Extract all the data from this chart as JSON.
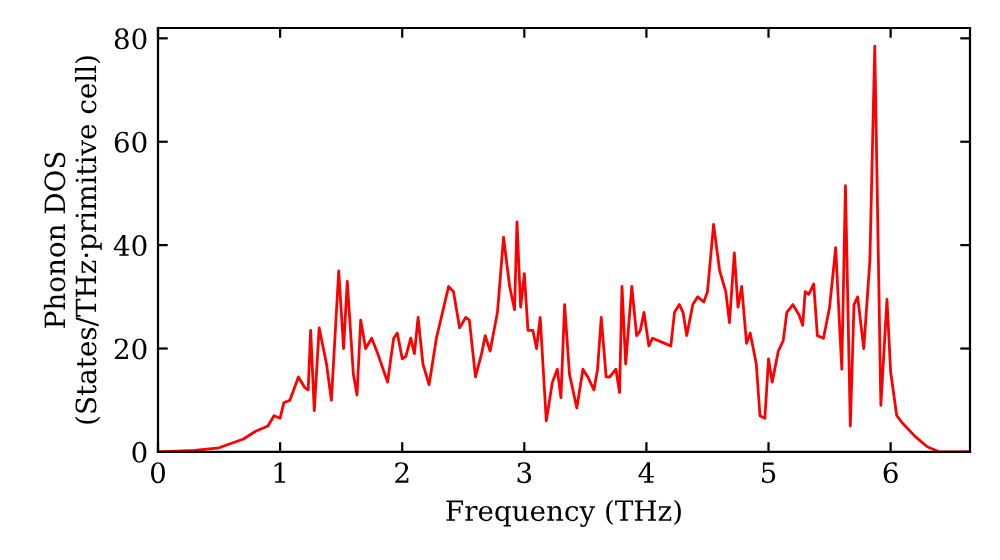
{
  "chart_data": {
    "type": "line",
    "xlabel": "Frequency (THz)",
    "ylabel": "Phonon DOS\n(States/THz·primitive cell)",
    "xlim": [
      0,
      6.65
    ],
    "ylim": [
      0,
      82
    ],
    "xticks": [
      0,
      1,
      2,
      3,
      4,
      5,
      6
    ],
    "yticks": [
      0,
      20,
      40,
      60,
      80
    ],
    "grid": false,
    "legend": false,
    "series": [
      {
        "color": "#ff0000",
        "x": [
          0,
          0.3,
          0.5,
          0.7,
          0.8,
          0.9,
          0.95,
          1.0,
          1.03,
          1.08,
          1.15,
          1.2,
          1.23,
          1.25,
          1.28,
          1.32,
          1.38,
          1.42,
          1.48,
          1.52,
          1.55,
          1.6,
          1.63,
          1.66,
          1.7,
          1.75,
          1.8,
          1.88,
          1.93,
          1.96,
          2.0,
          2.03,
          2.07,
          2.1,
          2.13,
          2.17,
          2.22,
          2.28,
          2.33,
          2.38,
          2.42,
          2.47,
          2.52,
          2.55,
          2.6,
          2.65,
          2.68,
          2.72,
          2.78,
          2.83,
          2.88,
          2.92,
          2.94,
          2.97,
          3.0,
          3.03,
          3.07,
          3.1,
          3.13,
          3.18,
          3.23,
          3.27,
          3.3,
          3.33,
          3.37,
          3.43,
          3.48,
          3.52,
          3.57,
          3.6,
          3.63,
          3.67,
          3.7,
          3.75,
          3.78,
          3.8,
          3.83,
          3.88,
          3.92,
          3.95,
          3.98,
          4.02,
          4.05,
          4.1,
          4.15,
          4.2,
          4.23,
          4.27,
          4.3,
          4.33,
          4.38,
          4.42,
          4.47,
          4.5,
          4.55,
          4.6,
          4.65,
          4.68,
          4.72,
          4.75,
          4.78,
          4.82,
          4.85,
          4.9,
          4.93,
          4.97,
          5.0,
          5.03,
          5.08,
          5.12,
          5.15,
          5.2,
          5.25,
          5.28,
          5.3,
          5.33,
          5.37,
          5.4,
          5.45,
          5.5,
          5.55,
          5.6,
          5.63,
          5.67,
          5.7,
          5.73,
          5.78,
          5.83,
          5.87,
          5.92,
          5.97,
          6.0,
          6.05,
          6.1,
          6.2,
          6.3,
          6.4,
          6.65
        ],
        "values": [
          0,
          0.3,
          0.8,
          2.5,
          4,
          5,
          7,
          6.5,
          9.5,
          10,
          14.5,
          12.5,
          12,
          23.5,
          8,
          24,
          17,
          10,
          35,
          20,
          33,
          15,
          11,
          25.5,
          20,
          22,
          19,
          13.5,
          22,
          23,
          18,
          18.5,
          22,
          19,
          26,
          17,
          13,
          22,
          27,
          32,
          31,
          24,
          26,
          25.5,
          14.5,
          19,
          22.5,
          19.5,
          27,
          41.5,
          32,
          27.5,
          44.5,
          28,
          34.5,
          23.5,
          23.5,
          20,
          26,
          6,
          13.5,
          16,
          10.5,
          28.5,
          15,
          8.5,
          16,
          14.5,
          12,
          16,
          26,
          14.5,
          14.5,
          16,
          11.5,
          32,
          17,
          32,
          22.5,
          23.5,
          27,
          20.5,
          22,
          21.5,
          21,
          20.5,
          27,
          28.5,
          27,
          22.5,
          28.5,
          30,
          29,
          31,
          44,
          35,
          31,
          25,
          38.5,
          28,
          32,
          21,
          23,
          17,
          7,
          6.5,
          18,
          13.5,
          19.5,
          21.5,
          27,
          28.5,
          26.5,
          24.5,
          31,
          30.5,
          32.5,
          22.5,
          22,
          28,
          39.5,
          16,
          51.5,
          5,
          28.5,
          30,
          20,
          37,
          78.5,
          9,
          29.5,
          15.5,
          7,
          5.5,
          3,
          1,
          0,
          0
        ]
      }
    ]
  }
}
